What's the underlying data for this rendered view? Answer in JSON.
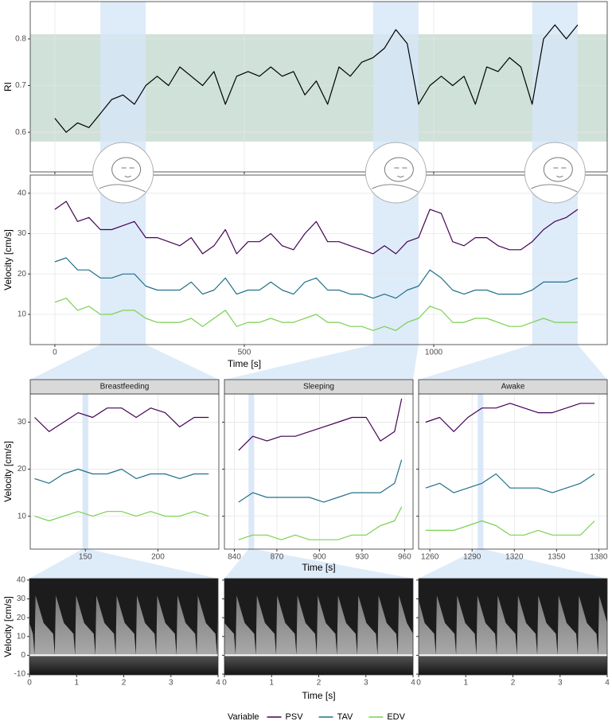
{
  "chart_data": [
    {
      "type": "line",
      "ylabel": "RI",
      "x": [
        0,
        30,
        60,
        90,
        120,
        150,
        180,
        210,
        240,
        270,
        300,
        330,
        360,
        390,
        420,
        450,
        480,
        510,
        540,
        570,
        600,
        630,
        660,
        690,
        720,
        750,
        780,
        810,
        840,
        870,
        900,
        930,
        960,
        990,
        1020,
        1050,
        1080,
        1110,
        1140,
        1170,
        1200,
        1230,
        1260,
        1290,
        1320,
        1350,
        1380
      ],
      "series": [
        {
          "color": "#000000",
          "values": [
            0.63,
            0.6,
            0.62,
            0.61,
            0.64,
            0.67,
            0.68,
            0.66,
            0.7,
            0.72,
            0.7,
            0.74,
            0.72,
            0.7,
            0.73,
            0.66,
            0.72,
            0.73,
            0.72,
            0.74,
            0.72,
            0.73,
            0.68,
            0.71,
            0.66,
            0.74,
            0.72,
            0.75,
            0.76,
            0.78,
            0.82,
            0.79,
            0.66,
            0.7,
            0.72,
            0.7,
            0.72,
            0.66,
            0.74,
            0.73,
            0.76,
            0.74,
            0.66,
            0.8,
            0.83,
            0.8,
            0.83
          ]
        }
      ],
      "xlim": [
        -65,
        1458
      ],
      "xticks": [
        0,
        500,
        1000
      ],
      "ylim": [
        0.515,
        0.88
      ],
      "yticks": [
        0.6,
        0.7,
        0.8
      ],
      "grid": true,
      "band": [
        0.58,
        0.81
      ],
      "band_color": "#cfe1d8",
      "highlights": [
        [
          120,
          240
        ],
        [
          840,
          960
        ],
        [
          1260,
          1380
        ]
      ],
      "highlight_color": "#d6e6f7"
    },
    {
      "type": "line",
      "xlabel": "Time [s]",
      "ylabel": "Velocity [cm/s]",
      "legend_title": "Variable",
      "x": [
        0,
        30,
        60,
        90,
        120,
        150,
        180,
        210,
        240,
        270,
        300,
        330,
        360,
        390,
        420,
        450,
        480,
        510,
        540,
        570,
        600,
        630,
        660,
        690,
        720,
        750,
        780,
        810,
        840,
        870,
        900,
        930,
        960,
        990,
        1020,
        1050,
        1080,
        1110,
        1140,
        1170,
        1200,
        1230,
        1260,
        1290,
        1320,
        1350,
        1380
      ],
      "series": [
        {
          "name": "PSV",
          "color": "#440154",
          "values": [
            36,
            38,
            33,
            34,
            31,
            31,
            32,
            33,
            29,
            29,
            28,
            27,
            29,
            25,
            27,
            31,
            25,
            28,
            28,
            30,
            27,
            26,
            30,
            33,
            28,
            28,
            27,
            26,
            25,
            27,
            25,
            28,
            29,
            36,
            35,
            28,
            27,
            29,
            29,
            27,
            26,
            26,
            28,
            31,
            33,
            34,
            36
          ]
        },
        {
          "name": "TAV",
          "color": "#21708b",
          "values": [
            23,
            24,
            21,
            21,
            19,
            19,
            20,
            20,
            17,
            16,
            16,
            16,
            18,
            15,
            16,
            19,
            15,
            16,
            16,
            18,
            16,
            15,
            18,
            19,
            16,
            16,
            15,
            15,
            14,
            15,
            14,
            16,
            17,
            21,
            19,
            16,
            15,
            16,
            16,
            15,
            15,
            15,
            16,
            18,
            18,
            18,
            19
          ]
        },
        {
          "name": "EDV",
          "color": "#7ad151",
          "values": [
            13,
            14,
            11,
            12,
            10,
            10,
            11,
            11,
            9,
            8,
            8,
            8,
            9,
            7,
            9,
            11,
            7,
            8,
            8,
            9,
            8,
            8,
            9,
            10,
            8,
            8,
            7,
            7,
            6,
            7,
            6,
            8,
            9,
            12,
            11,
            8,
            8,
            9,
            9,
            8,
            7,
            7,
            8,
            9,
            8,
            8,
            8
          ]
        }
      ],
      "xlim": [
        -65,
        1458
      ],
      "xticks": [
        0,
        500,
        1000
      ],
      "ylim": [
        2.5,
        44.5
      ],
      "yticks": [
        10,
        20,
        30,
        40
      ],
      "grid": true
    },
    {
      "type": "line",
      "title": "Breastfeeding",
      "ylabel": "Velocity [cm/s]",
      "x": [
        115,
        125,
        135,
        145,
        155,
        165,
        175,
        185,
        195,
        205,
        215,
        225,
        235
      ],
      "series": [
        {
          "color": "#440154",
          "values": [
            31,
            28,
            30,
            32,
            31,
            33,
            33,
            31,
            33,
            32,
            29,
            31,
            31
          ]
        },
        {
          "color": "#21708b",
          "values": [
            18,
            17,
            19,
            20,
            19,
            19,
            20,
            18,
            19,
            19,
            18,
            19,
            19
          ]
        },
        {
          "color": "#7ad151",
          "values": [
            10,
            9,
            10,
            11,
            10,
            11,
            11,
            10,
            11,
            10,
            10,
            11,
            10
          ]
        }
      ],
      "xlim": [
        112,
        242
      ],
      "xticks": [
        150,
        200
      ],
      "ylim": [
        3,
        36
      ],
      "yticks": [
        10,
        20,
        30
      ],
      "grid": true,
      "highlight": [
        148,
        152
      ]
    },
    {
      "type": "line",
      "title": "Sleeping",
      "xlabel": "Time [s]",
      "x": [
        843,
        853,
        863,
        873,
        883,
        893,
        903,
        913,
        923,
        933,
        943,
        953,
        958
      ],
      "series": [
        {
          "color": "#440154",
          "values": [
            24,
            27,
            26,
            27,
            27,
            28,
            29,
            30,
            31,
            31,
            26,
            28,
            35
          ]
        },
        {
          "color": "#21708b",
          "values": [
            13,
            15,
            14,
            14,
            14,
            14,
            13,
            14,
            15,
            15,
            15,
            17,
            22
          ]
        },
        {
          "color": "#7ad151",
          "values": [
            5,
            6,
            6,
            5,
            6,
            5,
            5,
            5,
            6,
            6,
            8,
            9,
            12
          ]
        }
      ],
      "xlim": [
        833,
        966
      ],
      "xticks": [
        840,
        870,
        900,
        930,
        960
      ],
      "ylim": [
        3,
        36
      ],
      "yticks": [
        10,
        20,
        30
      ],
      "grid": true,
      "highlight": [
        850,
        854
      ]
    },
    {
      "type": "line",
      "title": "Awake",
      "x": [
        1257,
        1267,
        1277,
        1287,
        1297,
        1307,
        1317,
        1327,
        1337,
        1347,
        1357,
        1367,
        1377
      ],
      "series": [
        {
          "color": "#440154",
          "values": [
            30,
            31,
            28,
            31,
            33,
            33,
            34,
            33,
            32,
            32,
            33,
            34,
            34
          ]
        },
        {
          "color": "#21708b",
          "values": [
            16,
            17,
            15,
            16,
            17,
            19,
            16,
            16,
            16,
            15,
            16,
            17,
            19
          ]
        },
        {
          "color": "#7ad151",
          "values": [
            7,
            7,
            7,
            8,
            9,
            8,
            6,
            6,
            7,
            6,
            6,
            6,
            9
          ]
        }
      ],
      "xlim": [
        1252,
        1386
      ],
      "xticks": [
        1260,
        1290,
        1320,
        1350,
        1380
      ],
      "ylim": [
        3,
        36
      ],
      "yticks": [
        10,
        20,
        30
      ],
      "grid": true,
      "highlight": [
        1294,
        1298
      ]
    },
    {
      "type": "spectrogram",
      "ylabel": "Velocity [cm/s]",
      "xlim": [
        0,
        4
      ],
      "xticks": [
        0,
        1,
        2,
        3,
        4
      ],
      "ylim": [
        -10.4,
        40.8
      ],
      "yticks": [
        -10,
        0,
        10,
        20,
        30,
        40
      ]
    },
    {
      "type": "spectrogram",
      "xlabel": "Time [s]",
      "xlim": [
        0,
        4
      ],
      "xticks": [
        0,
        1,
        2,
        3,
        4
      ],
      "ylim": [
        -10.4,
        40.8
      ],
      "yticks": [
        -10,
        0,
        10,
        20,
        30,
        40
      ]
    },
    {
      "type": "spectrogram",
      "xlim": [
        0,
        4
      ],
      "xticks": [
        0,
        1,
        2,
        3,
        4
      ],
      "ylim": [
        -10.4,
        40.8
      ],
      "yticks": [
        -10,
        0,
        10,
        20,
        30,
        40
      ]
    }
  ]
}
